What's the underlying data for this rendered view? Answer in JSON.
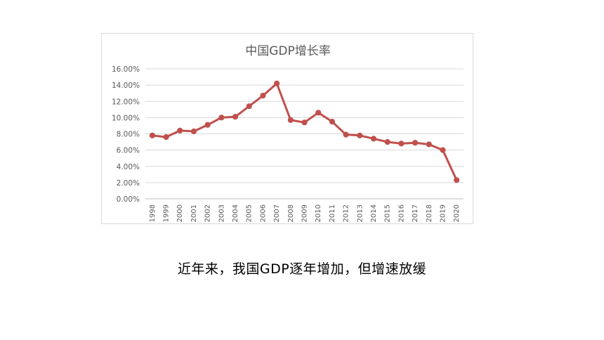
{
  "caption": "近年来，我国GDP逐年增加，但增速放缓",
  "colors": {
    "series": "#c0504d",
    "grid": "#d9d9d9",
    "axis": "#bfbfbf",
    "text": "#595959"
  },
  "chart_data": {
    "type": "line",
    "title": "中国GDP增长率",
    "xlabel": "",
    "ylabel": "",
    "categories": [
      "1998",
      "1999",
      "2000",
      "2001",
      "2002",
      "2003",
      "2004",
      "2005",
      "2006",
      "2007",
      "2008",
      "2009",
      "2010",
      "2011",
      "2012",
      "2013",
      "2014",
      "2015",
      "2016",
      "2017",
      "2018",
      "2019",
      "2020"
    ],
    "y_ticks": [
      "0.00%",
      "2.00%",
      "4.00%",
      "6.00%",
      "8.00%",
      "10.00%",
      "12.00%",
      "14.00%",
      "16.00%"
    ],
    "ylim": [
      0,
      16
    ],
    "grid": true,
    "legend": "none",
    "series": [
      {
        "values": [
          7.8,
          7.6,
          8.4,
          8.3,
          9.1,
          10.0,
          10.1,
          11.4,
          12.7,
          14.2,
          9.7,
          9.4,
          10.6,
          9.5,
          7.9,
          7.8,
          7.4,
          7.0,
          6.8,
          6.9,
          6.7,
          6.0,
          2.3
        ]
      }
    ]
  }
}
